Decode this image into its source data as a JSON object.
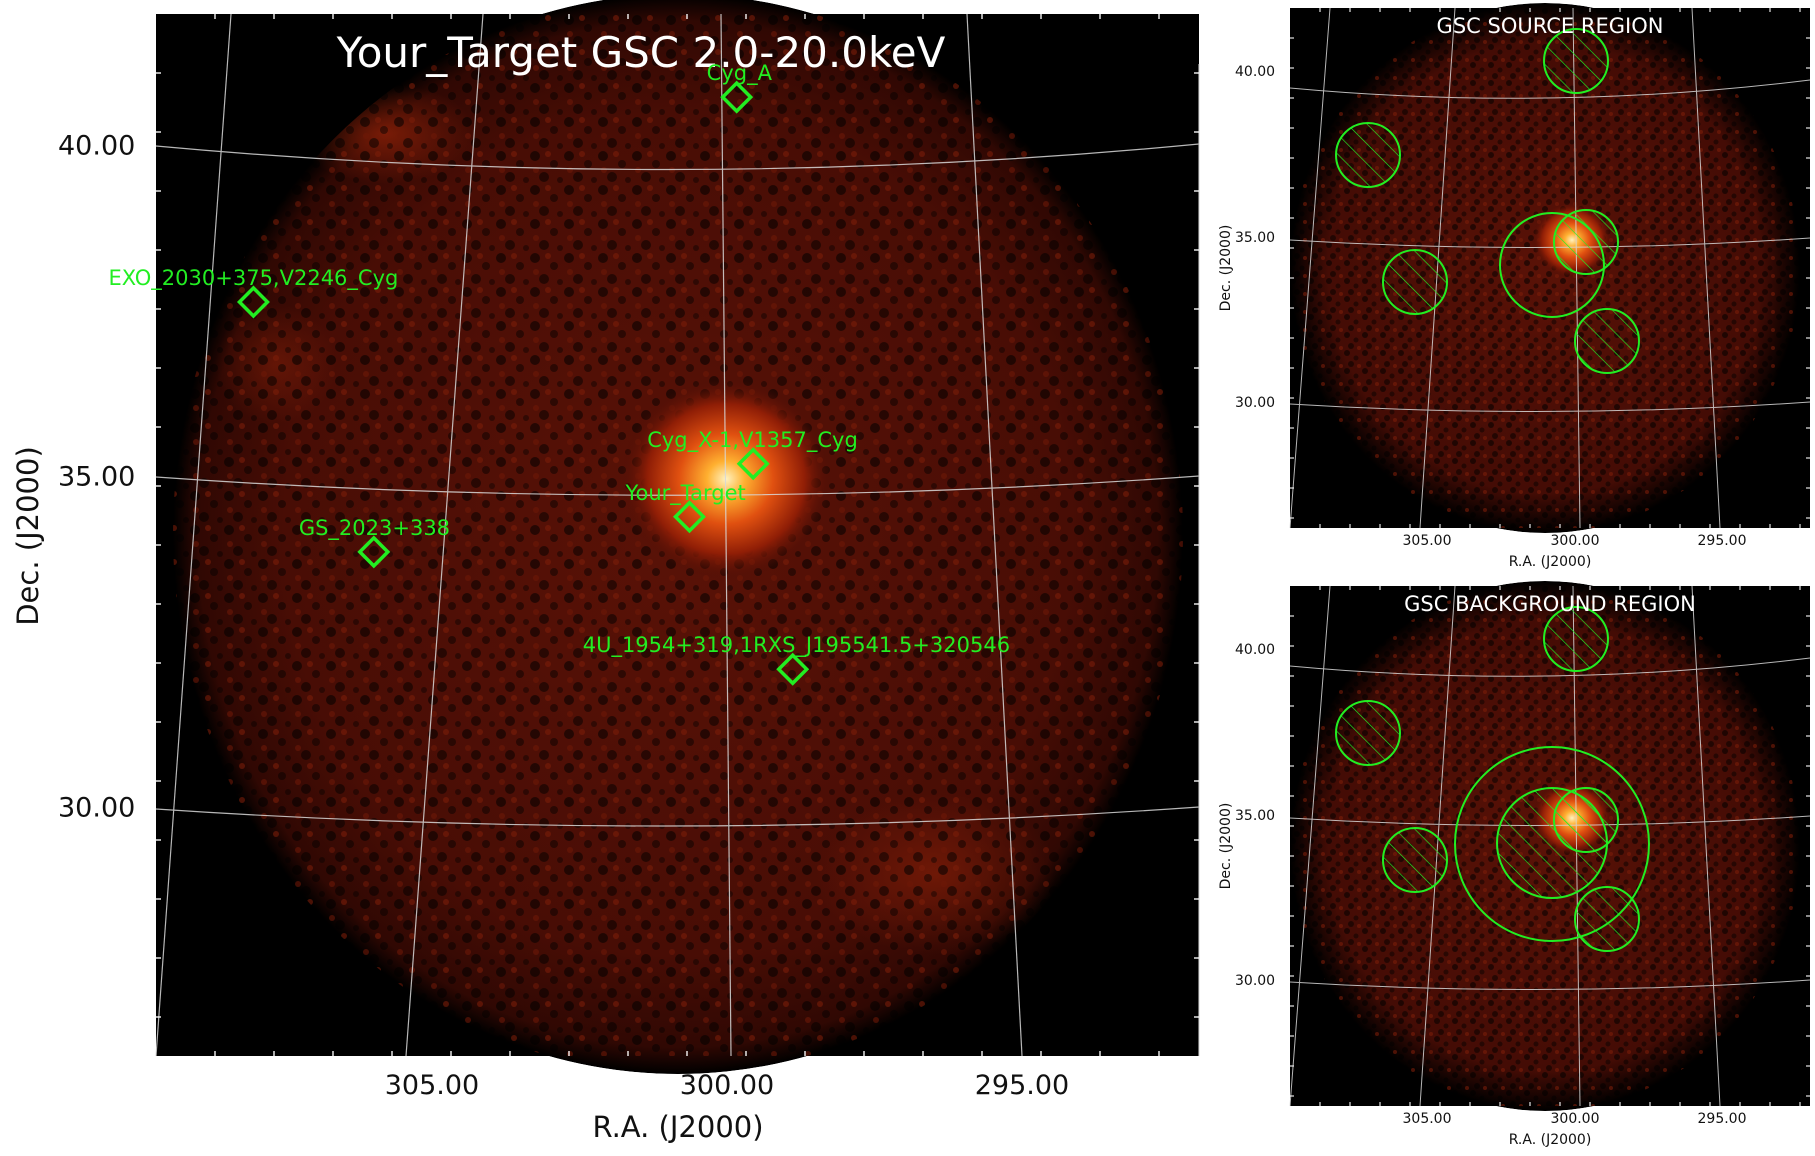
{
  "main": {
    "title": "Your_Target GSC 2.0-20.0keV",
    "xlabel": "R.A. (J2000)",
    "ylabel": "Dec. (J2000)",
    "x_ticks": [
      "305.00",
      "300.00",
      "295.00"
    ],
    "y_ticks": [
      "40.00",
      "35.00",
      "30.00"
    ],
    "sources": [
      {
        "name": "Cyg_A",
        "ra": 299.87,
        "dec": 40.73
      },
      {
        "name": "EXO_2030+375,V2246_Cyg",
        "ra": 308.06,
        "dec": 37.64
      },
      {
        "name": "Cyg_X-1,V1357_Cyg",
        "ra": 299.59,
        "dec": 35.2
      },
      {
        "name": "Your_Target",
        "ra": 300.67,
        "dec": 34.4
      },
      {
        "name": "GS_2023+338",
        "ra": 306.02,
        "dec": 33.87
      },
      {
        "name": "4U_1954+319,1RXS_J195541.5+320546",
        "ra": 298.92,
        "dec": 32.1
      }
    ]
  },
  "source_region": {
    "title": "GSC SOURCE REGION",
    "xlabel": "R.A. (J2000)",
    "ylabel": "Dec. (J2000)",
    "x_ticks": [
      "305.00",
      "300.00",
      "295.00"
    ],
    "y_ticks": [
      "40.00",
      "35.00",
      "30.00"
    ]
  },
  "background_region": {
    "title": "GSC BACKGROUND REGION",
    "xlabel": "R.A. (J2000)",
    "ylabel": "Dec. (J2000)",
    "x_ticks": [
      "305.00",
      "300.00",
      "295.00"
    ],
    "y_ticks": [
      "40.00",
      "35.00",
      "30.00"
    ]
  },
  "colors": {
    "marker": "#22ee22",
    "grid": "#d8d8d8",
    "background": "#000000",
    "emission_dim": "#4a0d05",
    "emission_bright": "#ffb030"
  }
}
